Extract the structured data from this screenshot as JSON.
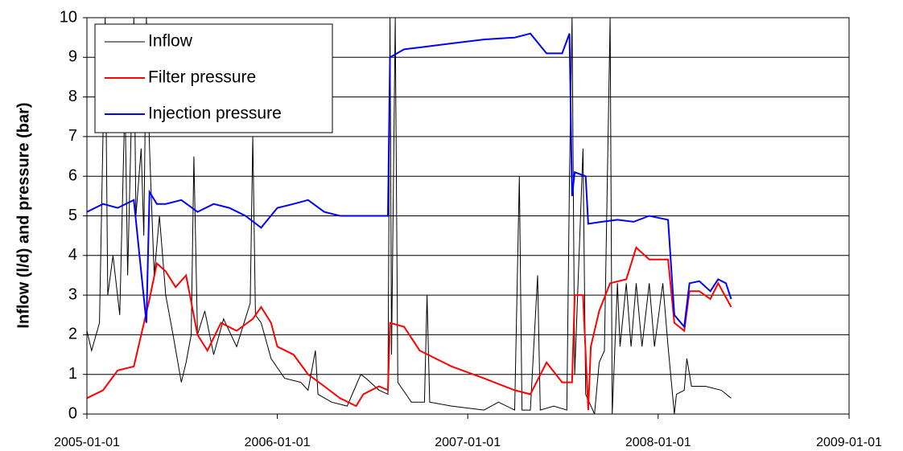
{
  "chart_data": {
    "type": "line",
    "ylabel": "Inflow (l/d) and pressure (bar)",
    "xlim": [
      "2005-01-01",
      "2009-01-01"
    ],
    "xticks": [
      "2005-01-01",
      "2006-01-01",
      "2007-01-01",
      "2008-01-01",
      "2009-01-01"
    ],
    "ylim": [
      0,
      10
    ],
    "yticks": [
      0,
      1,
      2,
      3,
      4,
      5,
      6,
      7,
      8,
      9,
      10
    ],
    "grid": true,
    "legend": "upper left",
    "series": [
      {
        "name": "Inflow",
        "color": "#000000",
        "x": [
          "2005-01-01",
          "2005-01-10",
          "2005-01-25",
          "2005-02-05",
          "2005-02-10",
          "2005-02-20",
          "2005-03-05",
          "2005-03-15",
          "2005-03-20",
          "2005-04-01",
          "2005-04-05",
          "2005-04-15",
          "2005-04-20",
          "2005-04-25",
          "2005-05-01",
          "2005-05-10",
          "2005-05-20",
          "2005-06-01",
          "2005-06-15",
          "2005-07-01",
          "2005-07-10",
          "2005-07-20",
          "2005-07-25",
          "2005-08-01",
          "2005-08-15",
          "2005-09-01",
          "2005-09-20",
          "2005-10-15",
          "2005-11-10",
          "2005-11-15",
          "2005-11-20",
          "2005-12-01",
          "2005-12-20",
          "2006-01-15",
          "2006-02-15",
          "2006-03-01",
          "2006-03-15",
          "2006-03-20",
          "2006-04-15",
          "2006-05-15",
          "2006-06-10",
          "2006-06-20",
          "2006-07-15",
          "2006-08-01",
          "2006-08-05",
          "2006-08-08",
          "2006-08-15",
          "2006-08-20",
          "2006-09-15",
          "2006-10-10",
          "2006-10-15",
          "2006-10-20",
          "2006-12-01",
          "2007-02-01",
          "2007-03-01",
          "2007-04-01",
          "2007-04-10",
          "2007-04-15",
          "2007-05-01",
          "2007-05-15",
          "2007-05-20",
          "2007-06-15",
          "2007-07-10",
          "2007-07-15",
          "2007-07-20",
          "2007-07-25",
          "2007-08-10",
          "2007-08-15",
          "2007-09-01",
          "2007-09-10",
          "2007-09-20",
          "2007-10-01",
          "2007-10-05",
          "2007-10-15",
          "2007-10-20",
          "2007-11-01",
          "2007-11-10",
          "2007-11-20",
          "2007-12-01",
          "2007-12-15",
          "2007-12-25",
          "2008-01-10",
          "2008-01-20",
          "2008-02-01",
          "2008-02-05",
          "2008-02-20",
          "2008-02-25",
          "2008-03-05",
          "2008-04-01",
          "2008-05-01",
          "2008-05-20"
        ],
        "values": [
          2.1,
          1.6,
          2.3,
          10,
          3.0,
          4.0,
          2.5,
          8.0,
          3.5,
          10,
          5.0,
          6.7,
          4.5,
          10,
          6.7,
          3.5,
          5.0,
          3.0,
          2.0,
          0.8,
          1.3,
          2.0,
          6.5,
          2.0,
          2.6,
          1.5,
          2.4,
          1.7,
          2.8,
          7.0,
          2.5,
          2.3,
          1.4,
          0.9,
          0.8,
          0.6,
          1.6,
          0.5,
          0.3,
          0.2,
          1.0,
          0.9,
          0.6,
          0.5,
          10,
          1.5,
          10,
          0.8,
          0.3,
          0.3,
          3.0,
          0.3,
          0.2,
          0.1,
          0.3,
          0.1,
          6.0,
          0.1,
          0.1,
          3.5,
          0.1,
          0.2,
          0.1,
          6.0,
          10,
          1.0,
          6.7,
          0.5,
          0,
          1.3,
          1.6,
          10,
          0,
          3.3,
          1.7,
          3.3,
          1.7,
          3.3,
          1.7,
          3.3,
          1.7,
          3.3,
          1.7,
          0,
          0.5,
          0.6,
          1.4,
          0.7,
          0.7,
          0.6,
          0.4
        ]
      },
      {
        "name": "Filter pressure",
        "color": "#ff0000",
        "x": [
          "2005-01-01",
          "2005-02-01",
          "2005-03-01",
          "2005-04-01",
          "2005-05-01",
          "2005-05-15",
          "2005-06-01",
          "2005-06-20",
          "2005-07-10",
          "2005-08-01",
          "2005-08-20",
          "2005-09-15",
          "2005-10-15",
          "2005-11-15",
          "2005-12-01",
          "2005-12-20",
          "2006-01-01",
          "2006-02-01",
          "2006-03-01",
          "2006-04-01",
          "2006-05-01",
          "2006-06-01",
          "2006-06-15",
          "2006-07-15",
          "2006-08-01",
          "2006-08-05",
          "2006-09-01",
          "2006-10-01",
          "2006-12-01",
          "2007-02-01",
          "2007-04-01",
          "2007-05-01",
          "2007-06-01",
          "2007-07-01",
          "2007-07-20",
          "2007-07-25",
          "2007-08-10",
          "2007-08-20",
          "2007-08-25",
          "2007-09-10",
          "2007-10-01",
          "2007-11-01",
          "2007-11-20",
          "2007-12-15",
          "2008-01-20",
          "2008-02-01",
          "2008-02-20",
          "2008-03-01",
          "2008-03-20",
          "2008-04-10",
          "2008-04-25",
          "2008-05-20"
        ],
        "values": [
          0.4,
          0.6,
          1.1,
          1.2,
          2.9,
          3.8,
          3.6,
          3.2,
          3.5,
          2.0,
          1.6,
          2.3,
          2.1,
          2.4,
          2.7,
          2.3,
          1.7,
          1.5,
          1.0,
          0.7,
          0.4,
          0.2,
          0.5,
          0.7,
          0.6,
          2.3,
          2.2,
          1.6,
          1.2,
          0.9,
          0.6,
          0.5,
          1.3,
          0.8,
          0.8,
          3.0,
          3.0,
          0.1,
          1.7,
          2.6,
          3.3,
          3.4,
          4.2,
          3.9,
          3.9,
          2.3,
          2.1,
          3.1,
          3.1,
          2.9,
          3.3,
          2.7
        ]
      },
      {
        "name": "Injection pressure",
        "color": "#0000ff",
        "x": [
          "2005-01-01",
          "2005-02-01",
          "2005-03-01",
          "2005-04-01",
          "2005-04-25",
          "2005-05-01",
          "2005-05-15",
          "2005-06-01",
          "2005-07-01",
          "2005-08-01",
          "2005-09-01",
          "2005-10-01",
          "2005-11-01",
          "2005-12-01",
          "2006-01-01",
          "2006-02-01",
          "2006-03-01",
          "2006-04-01",
          "2006-05-01",
          "2006-06-01",
          "2006-08-01",
          "2006-08-05",
          "2006-09-01",
          "2006-10-01",
          "2006-12-01",
          "2007-02-01",
          "2007-04-01",
          "2007-05-01",
          "2007-06-01",
          "2007-07-01",
          "2007-07-15",
          "2007-07-20",
          "2007-07-25",
          "2007-08-15",
          "2007-08-20",
          "2007-09-15",
          "2007-10-15",
          "2007-11-15",
          "2007-12-15",
          "2008-01-20",
          "2008-02-01",
          "2008-02-20",
          "2008-03-01",
          "2008-03-20",
          "2008-04-10",
          "2008-04-25",
          "2008-05-10",
          "2008-05-20"
        ],
        "values": [
          5.1,
          5.3,
          5.2,
          5.4,
          2.3,
          5.6,
          5.3,
          5.3,
          5.4,
          5.1,
          5.3,
          5.2,
          5.0,
          4.7,
          5.2,
          5.3,
          5.4,
          5.1,
          5.0,
          5.0,
          5.0,
          9.0,
          9.2,
          9.25,
          9.35,
          9.45,
          9.5,
          9.6,
          9.1,
          9.1,
          9.6,
          5.5,
          6.1,
          6.0,
          4.8,
          4.85,
          4.9,
          4.85,
          5.0,
          4.9,
          2.5,
          2.2,
          3.3,
          3.35,
          3.1,
          3.4,
          3.3,
          2.9
        ]
      }
    ]
  }
}
